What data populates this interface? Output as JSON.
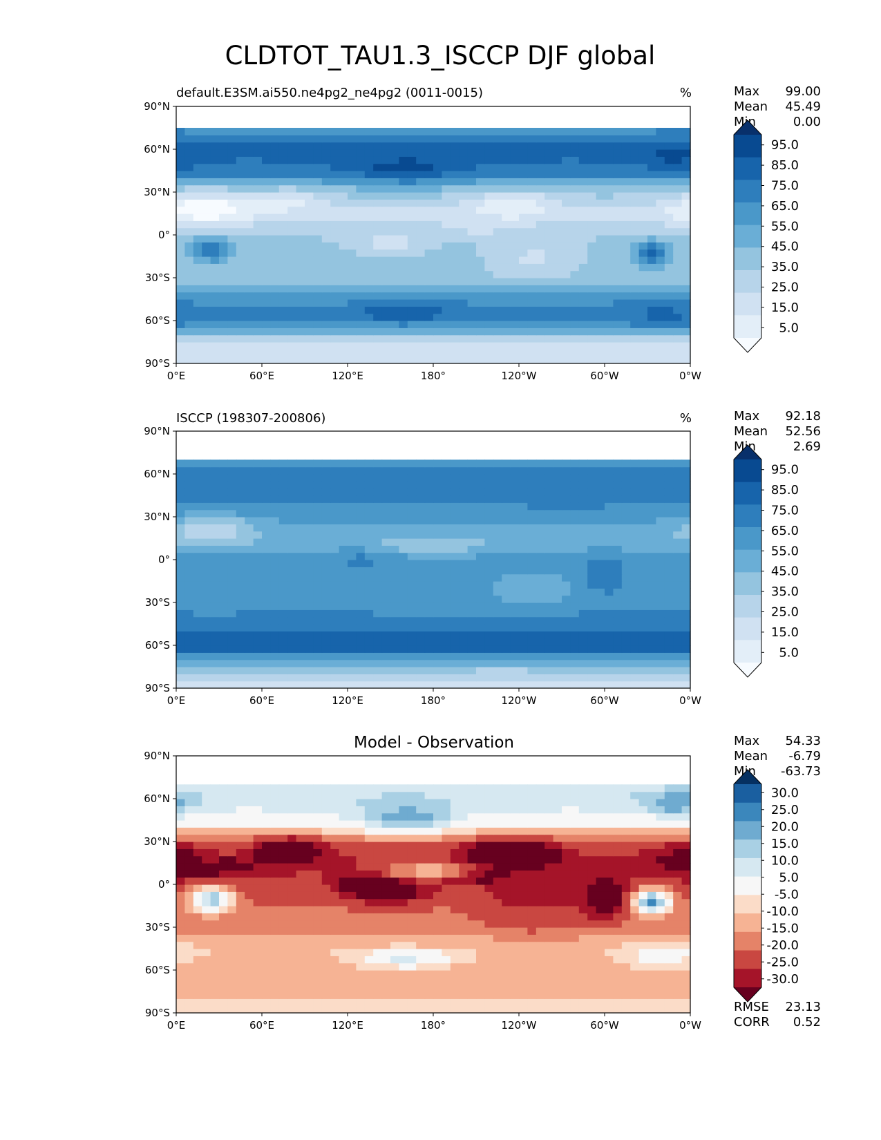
{
  "figure": {
    "title": "CLDTOT_TAU1.3_ISCCP DJF global"
  },
  "axes": {
    "lat_ticks": [
      "90°N",
      "60°N",
      "30°N",
      "0°",
      "30°S",
      "60°S",
      "90°S"
    ],
    "lon_ticks": [
      "0°E",
      "60°E",
      "120°E",
      "180°",
      "120°W",
      "60°W",
      "0°W"
    ]
  },
  "panels": [
    {
      "left_title": "default.E3SM.ai550.ne4pg2_ne4pg2 (0011-0015)",
      "center_title": "",
      "units": "%",
      "stats": [
        {
          "label": "Max",
          "value": "99.00"
        },
        {
          "label": "Mean",
          "value": "45.49"
        },
        {
          "label": "Min",
          "value": "0.00"
        }
      ],
      "colorbar": {
        "ticks": [
          "95.0",
          "85.0",
          "75.0",
          "65.0",
          "55.0",
          "45.0",
          "35.0",
          "25.0",
          "15.0",
          "5.0"
        ],
        "colors": [
          "#f7fbff",
          "#e3eef8",
          "#d0e1f2",
          "#b7d4ea",
          "#94c4df",
          "#6aaed6",
          "#4a98c9",
          "#2e7ebc",
          "#1764ab",
          "#084a91",
          "#08306b"
        ]
      }
    },
    {
      "left_title": "ISCCP (198307-200806)",
      "center_title": "",
      "units": "%",
      "stats": [
        {
          "label": "Max",
          "value": "92.18"
        },
        {
          "label": "Mean",
          "value": "52.56"
        },
        {
          "label": "Min",
          "value": "2.69"
        }
      ],
      "colorbar": {
        "ticks": [
          "95.0",
          "85.0",
          "75.0",
          "65.0",
          "55.0",
          "45.0",
          "35.0",
          "25.0",
          "15.0",
          "5.0"
        ],
        "colors": [
          "#f7fbff",
          "#e3eef8",
          "#d0e1f2",
          "#b7d4ea",
          "#94c4df",
          "#6aaed6",
          "#4a98c9",
          "#2e7ebc",
          "#1764ab",
          "#084a91",
          "#08306b"
        ]
      }
    },
    {
      "left_title": "",
      "center_title": "Model - Observation",
      "units": "",
      "stats": [
        {
          "label": "Max",
          "value": "54.33"
        },
        {
          "label": "Mean",
          "value": "-6.79"
        },
        {
          "label": "Min",
          "value": "-63.73"
        }
      ],
      "metrics": [
        {
          "label": "RMSE",
          "value": "23.13"
        },
        {
          "label": "CORR",
          "value": "0.52"
        }
      ],
      "colorbar": {
        "ticks": [
          "30.0",
          "25.0",
          "20.0",
          "15.0",
          "10.0",
          "5.0",
          "-5.0",
          "-10.0",
          "-15.0",
          "-20.0",
          "-25.0",
          "-30.0"
        ],
        "colors": [
          "#67001f",
          "#a51429",
          "#c94741",
          "#e58368",
          "#f6b394",
          "#fbdcc8",
          "#f7f7f7",
          "#d6e8f1",
          "#a9d0e4",
          "#6fabd0",
          "#3b87bc",
          "#1a5fa0",
          "#053061"
        ]
      }
    }
  ],
  "chart_data": [
    {
      "type": "heatmap",
      "title": "CLDTOT_TAU1.3_ISCCP DJF global",
      "subtitle": "default.E3SM.ai550.ne4pg2_ne4pg2 (0011-0015)",
      "units": "%",
      "x_ticks": [
        "0°E",
        "60°E",
        "120°E",
        "180°",
        "120°W",
        "60°W",
        "0°W"
      ],
      "y_ticks": [
        "90°N",
        "60°N",
        "30°N",
        "0°",
        "30°S",
        "60°S",
        "90°S"
      ],
      "xlim": [
        0,
        360
      ],
      "ylim": [
        -90,
        90
      ],
      "data_lat_extent": [
        -90,
        75
      ],
      "contour_levels": [
        5,
        15,
        25,
        35,
        45,
        55,
        65,
        75,
        85,
        95
      ],
      "colormap": "Blues",
      "stats": {
        "max": 99.0,
        "mean": 45.49,
        "min": 0.0
      },
      "field": {
        "zonal_profile": [
          [
            -90,
            15
          ],
          [
            -75,
            25
          ],
          [
            -60,
            72
          ],
          [
            -45,
            62
          ],
          [
            -30,
            40
          ],
          [
            -15,
            38
          ],
          [
            0,
            35
          ],
          [
            15,
            22
          ],
          [
            30,
            38
          ],
          [
            45,
            72
          ],
          [
            60,
            78
          ],
          [
            75,
            62
          ]
        ],
        "anomalies": [
          {
            "lon": 20,
            "lat": 20,
            "d": -30,
            "rlon": 35,
            "rlat": 12
          },
          {
            "lon": 80,
            "lat": 25,
            "d": -20,
            "rlon": 22,
            "rlat": 8
          },
          {
            "lon": 235,
            "lat": 22,
            "d": -22,
            "rlon": 30,
            "rlat": 10
          },
          {
            "lon": 250,
            "lat": -18,
            "d": -15,
            "rlon": 30,
            "rlat": 15
          },
          {
            "lon": 150,
            "lat": -5,
            "d": -15,
            "rlon": 25,
            "rlat": 8
          },
          {
            "lon": 210,
            "lat": 5,
            "d": -10,
            "rlon": 25,
            "rlat": 5
          },
          {
            "lon": 25,
            "lat": -10,
            "d": 35,
            "rlon": 14,
            "rlat": 9
          },
          {
            "lon": 333,
            "lat": -12,
            "d": 45,
            "rlon": 12,
            "rlat": 8
          },
          {
            "lon": 160,
            "lat": 45,
            "d": 18,
            "rlon": 35,
            "rlat": 10
          },
          {
            "lon": 160,
            "lat": -52,
            "d": 18,
            "rlon": 30,
            "rlat": 6
          },
          {
            "lon": 340,
            "lat": -50,
            "d": 10,
            "rlon": 25,
            "rlat": 10
          },
          {
            "lon": 350,
            "lat": 55,
            "d": 12,
            "rlon": 20,
            "rlat": 10
          }
        ]
      }
    },
    {
      "type": "heatmap",
      "subtitle": "ISCCP (198307-200806)",
      "units": "%",
      "x_ticks": [
        "0°E",
        "60°E",
        "120°E",
        "180°",
        "120°W",
        "60°W",
        "0°W"
      ],
      "y_ticks": [
        "90°N",
        "60°N",
        "30°N",
        "0°",
        "30°S",
        "60°S",
        "90°S"
      ],
      "xlim": [
        0,
        360
      ],
      "ylim": [
        -90,
        90
      ],
      "data_lat_extent": [
        -90,
        70
      ],
      "contour_levels": [
        5,
        15,
        25,
        35,
        45,
        55,
        65,
        75,
        85,
        95
      ],
      "colormap": "Blues",
      "stats": {
        "max": 92.18,
        "mean": 52.56,
        "min": 2.69
      },
      "field": {
        "zonal_profile": [
          [
            -90,
            20
          ],
          [
            -75,
            38
          ],
          [
            -60,
            85
          ],
          [
            -45,
            72
          ],
          [
            -30,
            58
          ],
          [
            -15,
            58
          ],
          [
            0,
            58
          ],
          [
            15,
            48
          ],
          [
            30,
            58
          ],
          [
            45,
            72
          ],
          [
            60,
            68
          ],
          [
            70,
            60
          ]
        ],
        "anomalies": [
          {
            "lon": 25,
            "lat": 22,
            "d": -25,
            "rlon": 30,
            "rlat": 10
          },
          {
            "lon": 180,
            "lat": 10,
            "d": -15,
            "rlon": 35,
            "rlat": 6
          },
          {
            "lon": 250,
            "lat": -20,
            "d": -12,
            "rlon": 25,
            "rlat": 10
          },
          {
            "lon": 300,
            "lat": -10,
            "d": 15,
            "rlon": 15,
            "rlat": 15
          },
          {
            "lon": 130,
            "lat": 0,
            "d": 10,
            "rlon": 20,
            "rlat": 8
          }
        ]
      }
    },
    {
      "type": "heatmap",
      "title": "Model - Observation",
      "x_ticks": [
        "0°E",
        "60°E",
        "120°E",
        "180°",
        "120°W",
        "60°W",
        "0°W"
      ],
      "y_ticks": [
        "90°N",
        "60°N",
        "30°N",
        "0°",
        "30°S",
        "60°S",
        "90°S"
      ],
      "xlim": [
        0,
        360
      ],
      "ylim": [
        -90,
        90
      ],
      "data_lat_extent": [
        -90,
        68
      ],
      "contour_levels": [
        -30,
        -25,
        -20,
        -15,
        -10,
        -5,
        5,
        10,
        15,
        20,
        25,
        30
      ],
      "colormap": "RdBu_r",
      "stats": {
        "max": 54.33,
        "mean": -6.79,
        "min": -63.73
      },
      "metrics": {
        "rmse": 23.13,
        "corr": 0.52
      },
      "field": {
        "difference_of": [
          0,
          1
        ]
      }
    }
  ]
}
